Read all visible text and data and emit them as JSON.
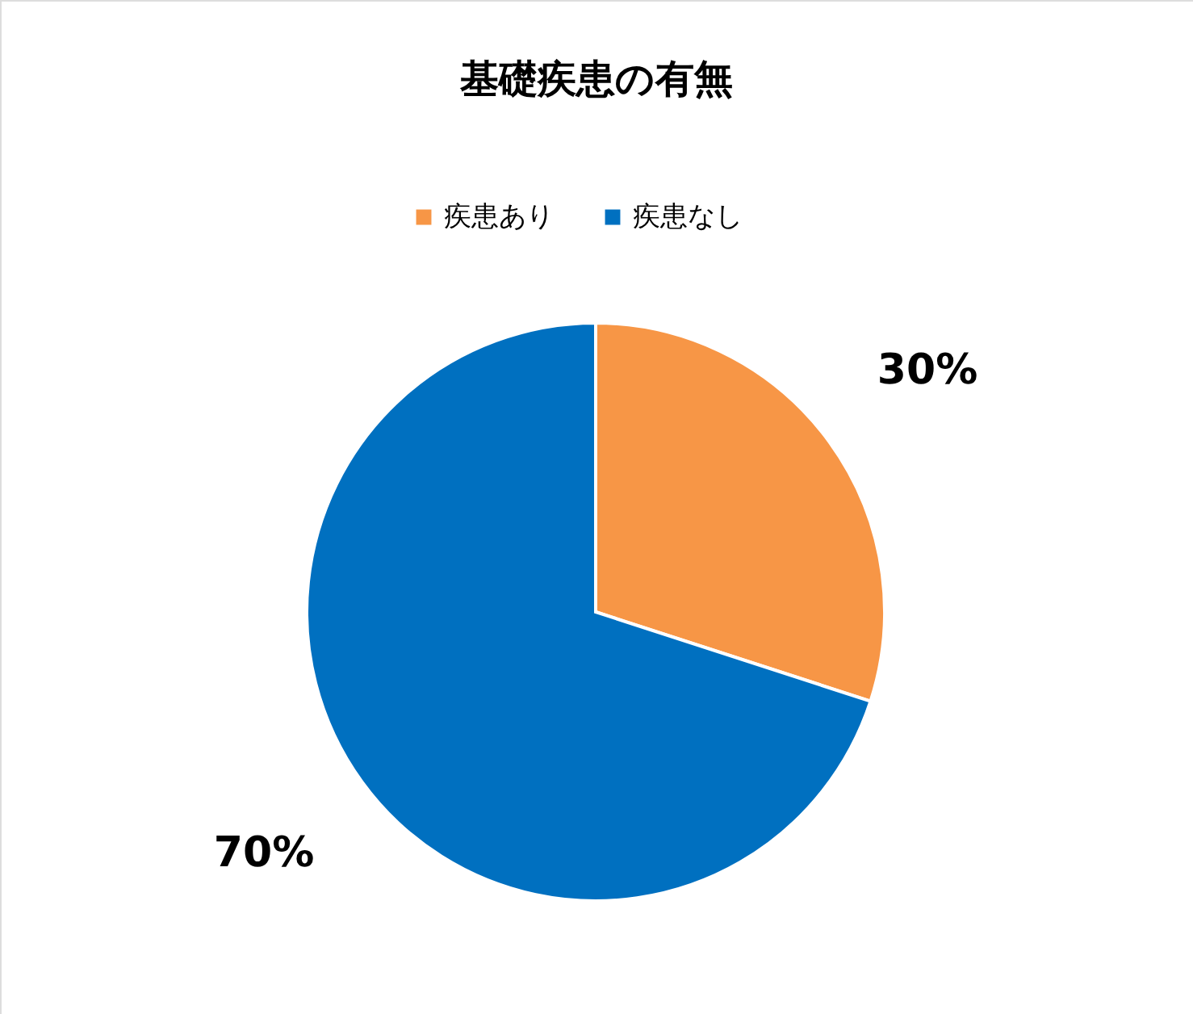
{
  "chart_data": {
    "type": "pie",
    "title": "基礎疾患の有無",
    "categories": [
      "疾患あり",
      "疾患なし"
    ],
    "values": [
      30,
      70
    ],
    "colors": [
      "#f79646",
      "#0070c0"
    ],
    "value_labels": [
      "30%",
      "70%"
    ],
    "legend": "top"
  }
}
